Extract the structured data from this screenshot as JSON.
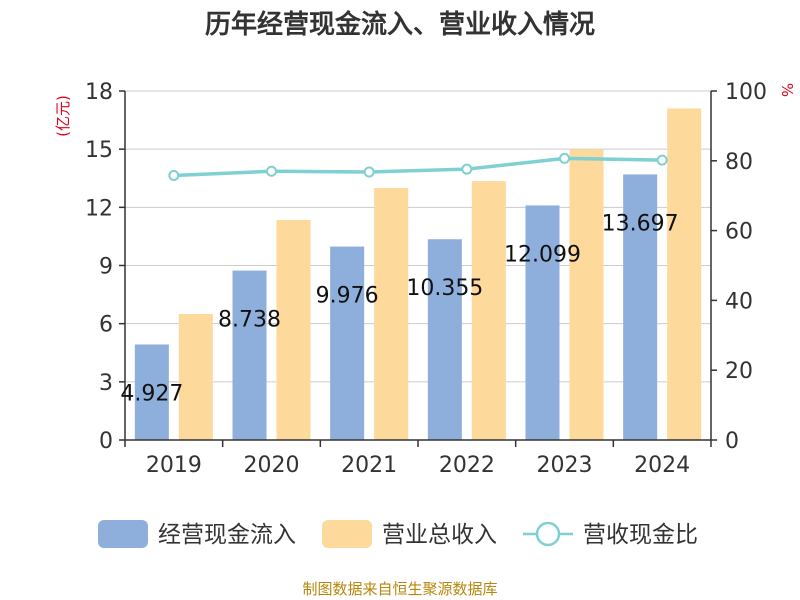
{
  "chart_data": {
    "type": "bar",
    "title": "历年经营现金流入、营业收入情况",
    "categories": [
      "2019",
      "2020",
      "2021",
      "2022",
      "2023",
      "2024"
    ],
    "series": [
      {
        "name": "经营现金流入",
        "kind": "bar",
        "axis": "left",
        "color": "#8eaedb",
        "values": [
          4.927,
          8.738,
          9.976,
          10.355,
          12.099,
          13.697
        ],
        "labels": [
          "4.927",
          "8.738",
          "9.976",
          "10.355",
          "12.099",
          "13.697"
        ]
      },
      {
        "name": "营业总收入",
        "kind": "bar",
        "axis": "left",
        "color": "#fdd99b",
        "values": [
          6.5,
          11.35,
          13.0,
          13.35,
          15.0,
          17.1
        ]
      },
      {
        "name": "营收现金比",
        "kind": "line",
        "axis": "right",
        "color": "#7fd0d3",
        "values": [
          75.8,
          77.0,
          76.8,
          77.6,
          80.7,
          80.2
        ]
      }
    ],
    "y_left": {
      "label": "(亿元)",
      "min": 0,
      "max": 18,
      "ticks": [
        0,
        3,
        6,
        9,
        12,
        15,
        18
      ]
    },
    "y_right": {
      "label": "%",
      "min": 0,
      "max": 100,
      "ticks": [
        0,
        20,
        40,
        60,
        80,
        100
      ]
    },
    "grid": true,
    "legend_position": "bottom",
    "source": "制图数据来自恒生聚源数据库"
  }
}
